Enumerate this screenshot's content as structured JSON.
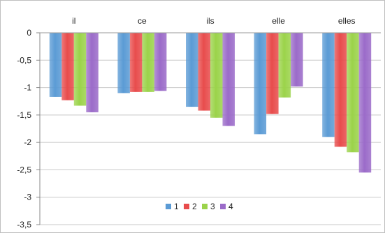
{
  "chart_data": {
    "type": "bar",
    "categories": [
      "il",
      "ce",
      "ils",
      "elle",
      "elles"
    ],
    "series": [
      {
        "name": "1",
        "color": "#5b9bd5",
        "values": [
          -1.17,
          -1.1,
          -1.35,
          -1.85,
          -1.9
        ]
      },
      {
        "name": "2",
        "color": "#e84c4c",
        "values": [
          -1.23,
          -1.08,
          -1.42,
          -1.48,
          -2.08
        ]
      },
      {
        "name": "3",
        "color": "#9bd34a",
        "values": [
          -1.33,
          -1.08,
          -1.55,
          -1.18,
          -2.18
        ]
      },
      {
        "name": "4",
        "color": "#9b6bc9",
        "values": [
          -1.45,
          -1.06,
          -1.7,
          -0.98,
          -2.55
        ]
      }
    ],
    "ylim": [
      -3.5,
      0
    ],
    "yticks": [
      0,
      -0.5,
      -1,
      -1.5,
      -2,
      -2.5,
      -3,
      -3.5
    ],
    "ytick_labels": [
      "0",
      "-0,5",
      "-1",
      "-1,5",
      "-2",
      "-2,5",
      "-3",
      "-3,5"
    ],
    "grid": true,
    "legend": "bottom-center",
    "category_labels_position": "top"
  }
}
